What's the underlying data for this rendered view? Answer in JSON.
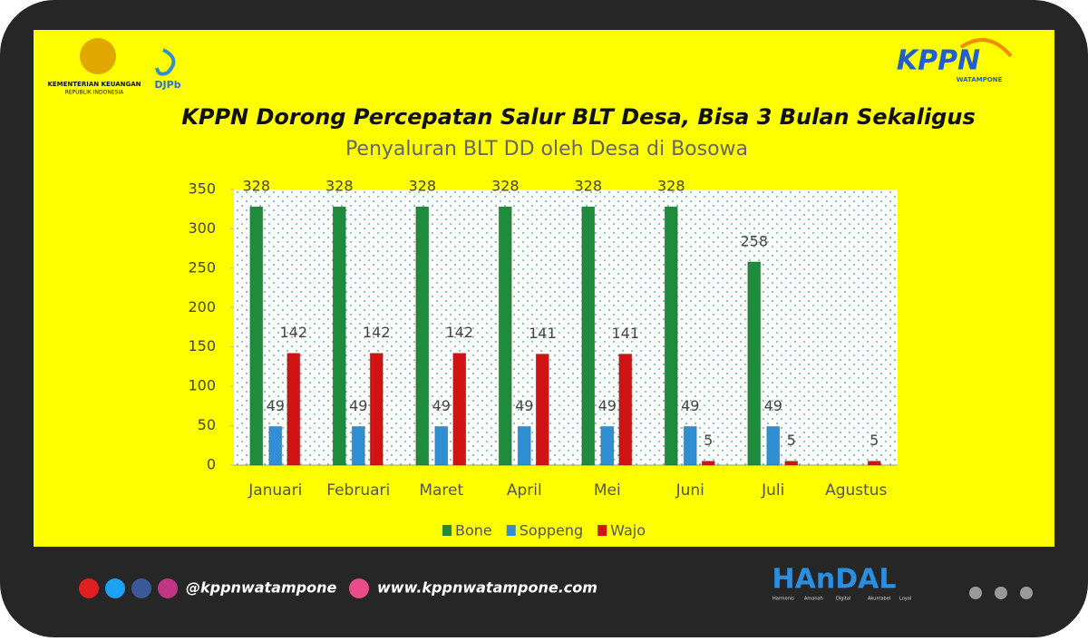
{
  "header": {
    "ministry": "KEMENTERIAN KEUANGAN",
    "country": "REPUBLIK INDONESIA",
    "djpb": "DJPb",
    "brand": "KPPN",
    "office": "WATAMPONE",
    "headline": "KPPN Dorong Percepatan Salur BLT Desa, Bisa 3 Bulan Sekaligus"
  },
  "chart_data": {
    "type": "bar",
    "title": "Penyaluran BLT DD oleh Desa di Bosowa",
    "categories": [
      "Januari",
      "Februari",
      "Maret",
      "April",
      "Mei",
      "Juni",
      "Juli",
      "Agustus"
    ],
    "series": [
      {
        "name": "Bone",
        "color": "#1e8c3c",
        "values": [
          328,
          328,
          328,
          328,
          328,
          328,
          258,
          null
        ]
      },
      {
        "name": "Soppeng",
        "color": "#2f8fd2",
        "values": [
          49,
          49,
          49,
          49,
          49,
          49,
          49,
          null
        ]
      },
      {
        "name": "Wajo",
        "color": "#d01414",
        "values": [
          142,
          142,
          142,
          141,
          141,
          5,
          5,
          5
        ]
      }
    ],
    "ylim": [
      0,
      350
    ],
    "yticks": [
      0,
      50,
      100,
      150,
      200,
      250,
      300,
      350
    ],
    "grid": false,
    "legend": "bottom"
  },
  "footer": {
    "handle": "@kppnwatampone",
    "website": "www.kppnwatampone.com",
    "motto": "HAnDAL",
    "motto_words": [
      "Harmonis",
      "Amanah",
      "Digital",
      "Akuntabel",
      "Loyal"
    ]
  }
}
